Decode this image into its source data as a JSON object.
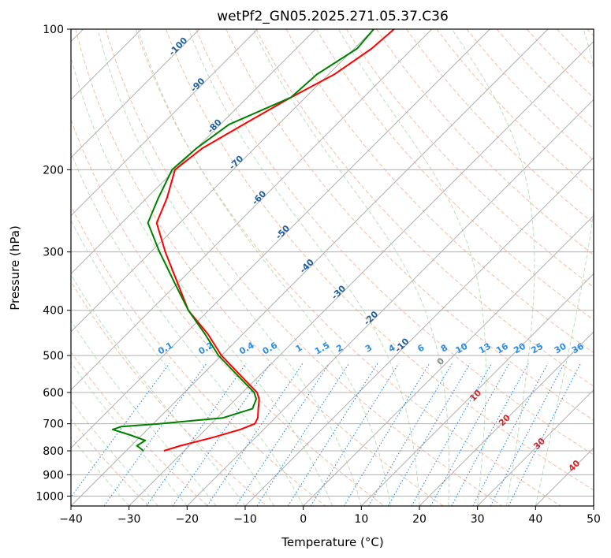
{
  "chart_data": {
    "type": "line",
    "subtype": "skew-t log-p diagram",
    "title": "wetPf2_GN05.2025.271.05.37.C36",
    "xlabel": "Temperature (°C)",
    "ylabel": "Pressure (hPa)",
    "xlim": [
      -40,
      50
    ],
    "ylim": [
      1050,
      100
    ],
    "yscale": "log",
    "grid": true,
    "x_ticks": [
      -40,
      -30,
      -20,
      -10,
      0,
      10,
      20,
      30,
      40,
      50
    ],
    "y_ticks": [
      100,
      200,
      300,
      400,
      500,
      600,
      700,
      800,
      900,
      1000
    ],
    "isotherm_labels": [
      {
        "value": -100,
        "at_p": 110
      },
      {
        "value": -90,
        "at_p": 133
      },
      {
        "value": -80,
        "at_p": 163
      },
      {
        "value": -70,
        "at_p": 195
      },
      {
        "value": -60,
        "at_p": 232
      },
      {
        "value": -50,
        "at_p": 275
      },
      {
        "value": -40,
        "at_p": 325
      },
      {
        "value": -30,
        "at_p": 370
      },
      {
        "value": -20,
        "at_p": 420
      },
      {
        "value": -10,
        "at_p": 480
      }
    ],
    "mixing_ratio_labels": [
      {
        "text": "0.1",
        "t": -23.5
      },
      {
        "text": "0.2",
        "t": -16.5
      },
      {
        "text": "0.4",
        "t": -9.5
      },
      {
        "text": "0.6",
        "t": -5.5
      },
      {
        "text": "1",
        "t": -0.5
      },
      {
        "text": "1.5",
        "t": 3.5
      },
      {
        "text": "2",
        "t": 6.5
      },
      {
        "text": "3",
        "t": 11.5
      },
      {
        "text": "4",
        "t": 15.5
      },
      {
        "text": "6",
        "t": 20.5
      },
      {
        "text": "8",
        "t": 24.5
      },
      {
        "text": "10",
        "t": 27.5
      },
      {
        "text": "13",
        "t": 31.5
      },
      {
        "text": "16",
        "t": 34.5
      },
      {
        "text": "20",
        "t": 37.5
      },
      {
        "text": "25",
        "t": 40.5
      },
      {
        "text": "30",
        "t": 44.5
      },
      {
        "text": "36",
        "t": 47.5
      }
    ],
    "moist_adiabat_labels": [
      {
        "text": "0",
        "t": 24,
        "p": 520,
        "color": "#888888"
      },
      {
        "text": "10",
        "t": 30,
        "p": 615,
        "color": "#d62728"
      },
      {
        "text": "20",
        "t": 35,
        "p": 695,
        "color": "#d62728"
      },
      {
        "text": "30",
        "t": 41,
        "p": 780,
        "color": "#d62728"
      },
      {
        "text": "40",
        "t": 47,
        "p": 870,
        "color": "#d62728"
      }
    ],
    "series": [
      {
        "color": "#ff0000",
        "pressure": [
          100,
          110,
          125,
          140,
          160,
          180,
          200,
          230,
          260,
          300,
          350,
          400,
          450,
          500,
          550,
          600,
          620,
          650,
          680,
          700,
          720,
          750,
          780,
          800
        ],
        "temperature": [
          -66.5,
          -67,
          -69,
          -72.5,
          -76,
          -79,
          -80,
          -76.5,
          -74,
          -67.5,
          -60,
          -53.5,
          -46,
          -40,
          -33.5,
          -27.5,
          -26,
          -24.5,
          -23,
          -22.5,
          -24,
          -27.5,
          -31.5,
          -33.5
        ]
      },
      {
        "color": "#008000",
        "pressure": [
          100,
          110,
          125,
          140,
          160,
          180,
          200,
          230,
          260,
          300,
          350,
          400,
          450,
          500,
          550,
          600,
          620,
          650,
          680,
          700,
          710,
          720,
          740,
          760,
          780,
          800
        ],
        "temperature": [
          -70,
          -69.5,
          -72,
          -72.5,
          -78.5,
          -80,
          -80.5,
          -78,
          -75.5,
          -68.5,
          -60.5,
          -53.5,
          -46.5,
          -40.5,
          -34,
          -28,
          -26.5,
          -25.5,
          -29,
          -39,
          -45,
          -46,
          -42,
          -38.5,
          -39,
          -37
        ]
      }
    ]
  }
}
